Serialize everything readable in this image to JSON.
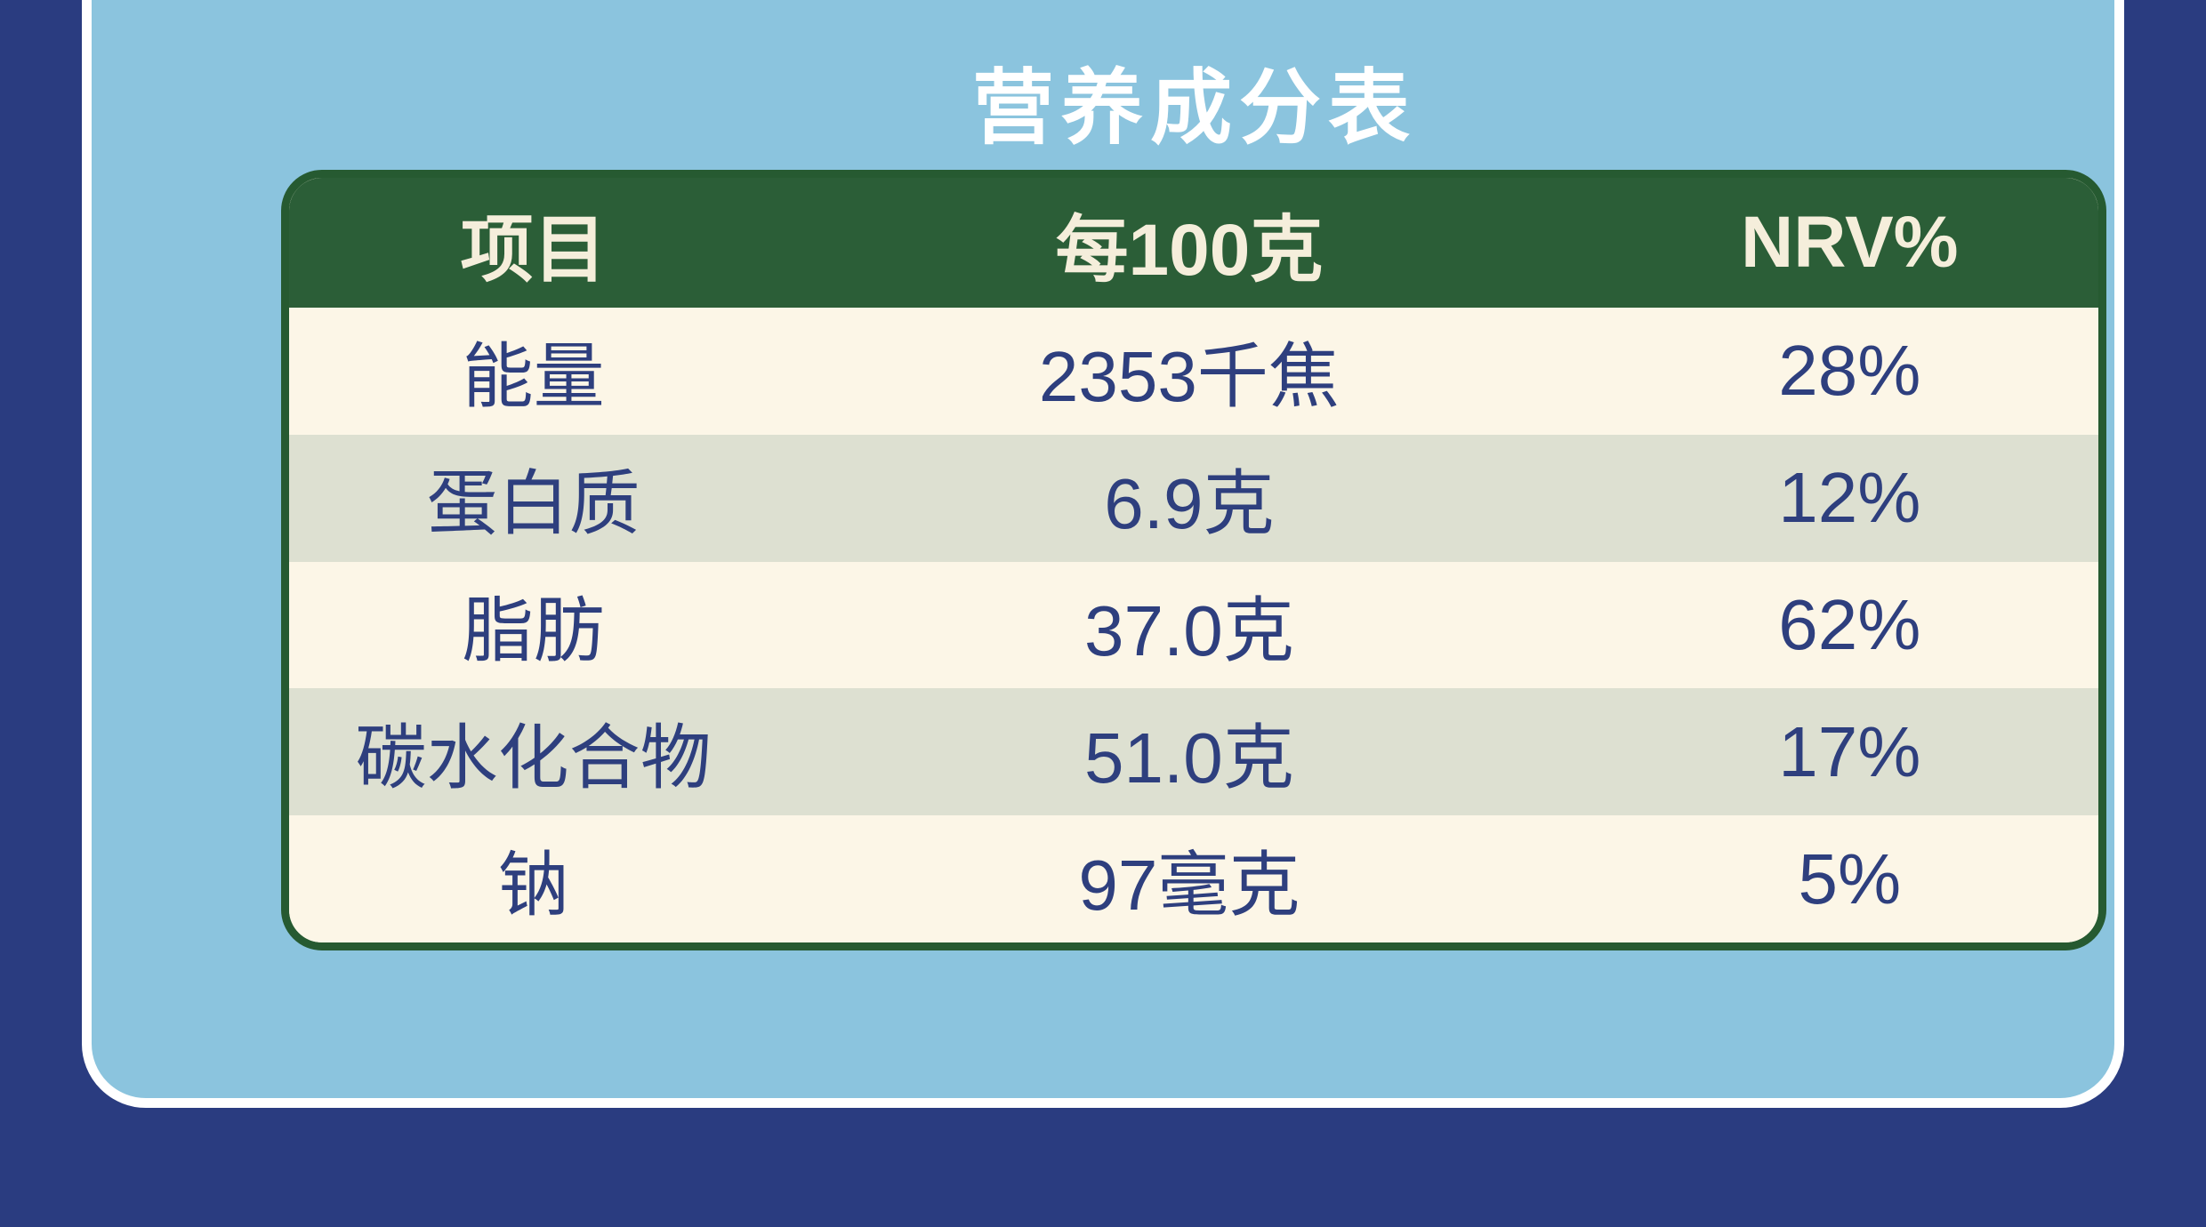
{
  "page": {
    "title_label": "营养成分表"
  },
  "colors": {
    "page-bg": "#2a3c80",
    "panel-bg": "#8bc4de",
    "panel-border": "#ffffff",
    "table-green": "#2b5e37",
    "table-border-green": "#265a31",
    "row-cream": "#fcf6e7",
    "row-sage": "#dde0d1",
    "header-text": "#f5eedb",
    "cell-text": "#2e3f7e",
    "title-text": "#ffffff"
  },
  "table": {
    "columns": [
      "项目",
      "每100克",
      "NRV%"
    ],
    "rows": [
      {
        "item": "能量",
        "per100g": "2353千焦",
        "nrv": "28%"
      },
      {
        "item": "蛋白质",
        "per100g": "6.9克",
        "nrv": "12%"
      },
      {
        "item": "脂肪",
        "per100g": "37.0克",
        "nrv": "62%"
      },
      {
        "item": "碳水化合物",
        "per100g": "51.0克",
        "nrv": "17%"
      },
      {
        "item": "钠",
        "per100g": "97毫克",
        "nrv": "5%"
      }
    ]
  }
}
